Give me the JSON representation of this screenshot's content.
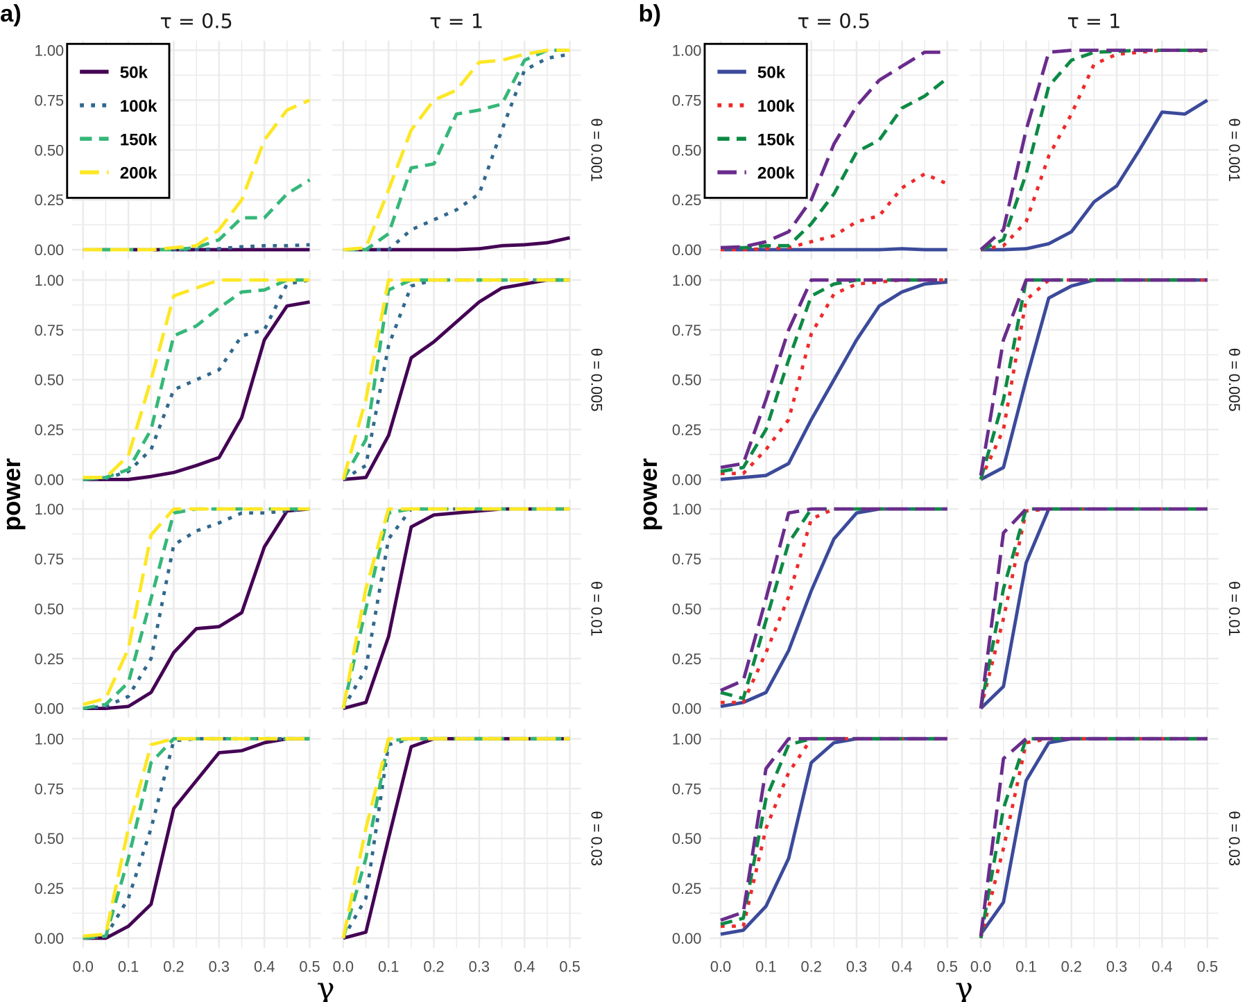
{
  "ylabel": "power",
  "xlabel": "γ",
  "x_ticks": [
    "0.0",
    "0.1",
    "0.2",
    "0.3",
    "0.4",
    "0.5"
  ],
  "y_ticks": [
    "0.00",
    "0.25",
    "0.50",
    "0.75",
    "1.00"
  ],
  "tau_labels": [
    "τ = 0.5",
    "τ = 1"
  ],
  "theta_labels": [
    "θ = 0.001",
    "θ = 0.005",
    "θ = 0.01",
    "θ = 0.03"
  ],
  "chart_data": [
    {
      "type": "line",
      "tag": "a)",
      "x": [
        0,
        0.05,
        0.1,
        0.15,
        0.2,
        0.25,
        0.3,
        0.35,
        0.4,
        0.45,
        0.5
      ],
      "xlim": [
        0,
        0.5
      ],
      "ylim": [
        0,
        1
      ],
      "grid": true,
      "legend_position": "top-left",
      "series_styles": [
        {
          "name": "50k",
          "color": "#440154",
          "dash": "solid"
        },
        {
          "name": "100k",
          "color": "#31688e",
          "dash": "dotted"
        },
        {
          "name": "150k",
          "color": "#35b779",
          "dash": "dashed"
        },
        {
          "name": "200k",
          "color": "#fde725",
          "dash": "longdash"
        }
      ],
      "panels": [
        {
          "tau": "0.5",
          "theta": "0.001",
          "series": [
            [
              0,
              0,
              0,
              0,
              0,
              0,
              0,
              0,
              0,
              0,
              0
            ],
            [
              0,
              0,
              0,
              0,
              0,
              0,
              0.005,
              0.015,
              0.02,
              0.02,
              0.025
            ],
            [
              0,
              0,
              0,
              0,
              0,
              0.01,
              0.05,
              0.16,
              0.16,
              0.28,
              0.35
            ],
            [
              0,
              0,
              0,
              0,
              0.01,
              0.02,
              0.1,
              0.25,
              0.55,
              0.7,
              0.75
            ]
          ]
        },
        {
          "tau": "1",
          "theta": "0.001",
          "series": [
            [
              0,
              0,
              0,
              0,
              0,
              0,
              0.005,
              0.02,
              0.025,
              0.035,
              0.06
            ],
            [
              0,
              0,
              0,
              0.1,
              0.15,
              0.2,
              0.28,
              0.6,
              0.9,
              0.96,
              0.98
            ],
            [
              0,
              0,
              0.08,
              0.41,
              0.43,
              0.68,
              0.7,
              0.73,
              0.95,
              1,
              1
            ],
            [
              0,
              0.01,
              0.3,
              0.6,
              0.75,
              0.8,
              0.94,
              0.95,
              0.98,
              1,
              1
            ]
          ]
        },
        {
          "tau": "0.5",
          "theta": "0.005",
          "series": [
            [
              0,
              0,
              0,
              0.015,
              0.035,
              0.07,
              0.11,
              0.31,
              0.7,
              0.87,
              0.89
            ],
            [
              0,
              0.005,
              0.04,
              0.15,
              0.45,
              0.5,
              0.55,
              0.72,
              0.75,
              0.98,
              1
            ],
            [
              0,
              0.01,
              0.05,
              0.25,
              0.72,
              0.77,
              0.86,
              0.94,
              0.95,
              1,
              1
            ],
            [
              0.01,
              0.01,
              0.12,
              0.5,
              0.92,
              0.96,
              1,
              1,
              1,
              1,
              1
            ]
          ]
        },
        {
          "tau": "1",
          "theta": "0.005",
          "series": [
            [
              0,
              0.01,
              0.22,
              0.61,
              0.69,
              0.79,
              0.89,
              0.96,
              0.98,
              1,
              1
            ],
            [
              0,
              0.07,
              0.67,
              0.97,
              1,
              1,
              1,
              1,
              1,
              1,
              1
            ],
            [
              0,
              0.2,
              0.95,
              1,
              1,
              1,
              1,
              1,
              1,
              1,
              1
            ],
            [
              0,
              0.4,
              1,
              1,
              1,
              1,
              1,
              1,
              1,
              1,
              1
            ]
          ]
        },
        {
          "tau": "0.5",
          "theta": "0.01",
          "series": [
            [
              0,
              0,
              0.01,
              0.08,
              0.28,
              0.4,
              0.41,
              0.48,
              0.81,
              0.99,
              1
            ],
            [
              0,
              0.01,
              0.06,
              0.25,
              0.82,
              0.89,
              0.93,
              0.98,
              0.98,
              0.99,
              1
            ],
            [
              0,
              0.02,
              0.13,
              0.55,
              0.98,
              1,
              1,
              1,
              1,
              1,
              1
            ],
            [
              0.02,
              0.05,
              0.3,
              0.87,
              1,
              1,
              1,
              1,
              1,
              1,
              1
            ]
          ]
        },
        {
          "tau": "1",
          "theta": "0.01",
          "series": [
            [
              0,
              0.03,
              0.36,
              0.91,
              0.97,
              0.98,
              0.99,
              1,
              1,
              1,
              1
            ],
            [
              0,
              0.2,
              0.85,
              1,
              1,
              1,
              1,
              1,
              1,
              1,
              1
            ],
            [
              0,
              0.5,
              0.98,
              1,
              1,
              1,
              1,
              1,
              1,
              1,
              1
            ],
            [
              0,
              0.6,
              1,
              1,
              1,
              1,
              1,
              1,
              1,
              1,
              1
            ]
          ]
        },
        {
          "tau": "0.5",
          "theta": "0.03",
          "series": [
            [
              0,
              0,
              0.06,
              0.17,
              0.65,
              0.79,
              0.93,
              0.94,
              0.98,
              1,
              1
            ],
            [
              0,
              0.01,
              0.2,
              0.55,
              0.99,
              1,
              1,
              1,
              1,
              1,
              1
            ],
            [
              0,
              0.01,
              0.4,
              0.88,
              1,
              1,
              1,
              1,
              1,
              1,
              1
            ],
            [
              0.01,
              0.02,
              0.55,
              0.97,
              1,
              1,
              1,
              1,
              1,
              1,
              1
            ]
          ]
        },
        {
          "tau": "1",
          "theta": "0.03",
          "series": [
            [
              0,
              0.03,
              0.5,
              0.96,
              1,
              1,
              1,
              1,
              1,
              1,
              1
            ],
            [
              0,
              0.2,
              0.97,
              1,
              1,
              1,
              1,
              1,
              1,
              1,
              1
            ],
            [
              0,
              0.4,
              0.99,
              1,
              1,
              1,
              1,
              1,
              1,
              1,
              1
            ],
            [
              0,
              0.55,
              1,
              1,
              1,
              1,
              1,
              1,
              1,
              1,
              1
            ]
          ]
        }
      ]
    },
    {
      "type": "line",
      "tag": "b)",
      "x": [
        0,
        0.05,
        0.1,
        0.15,
        0.2,
        0.25,
        0.3,
        0.35,
        0.4,
        0.45,
        0.5
      ],
      "xlim": [
        0,
        0.5
      ],
      "ylim": [
        0,
        1
      ],
      "grid": true,
      "legend_position": "top-left",
      "series_styles": [
        {
          "name": "50k",
          "color": "#3b4a9a",
          "dash": "solid"
        },
        {
          "name": "100k",
          "color": "#ee2a2a",
          "dash": "dotted"
        },
        {
          "name": "150k",
          "color": "#0d8a45",
          "dash": "dashed"
        },
        {
          "name": "200k",
          "color": "#6a2c8c",
          "dash": "longdash"
        }
      ],
      "panels": [
        {
          "tau": "0.5",
          "theta": "0.001",
          "series": [
            [
              0,
              0,
              0,
              0,
              0,
              0,
              0,
              0,
              0.005,
              0,
              0
            ],
            [
              0,
              0,
              0.005,
              0.01,
              0.04,
              0.07,
              0.14,
              0.17,
              0.31,
              0.38,
              0.33
            ],
            [
              0.01,
              0.01,
              0.02,
              0.02,
              0.13,
              0.28,
              0.49,
              0.55,
              0.71,
              0.77,
              0.86
            ],
            [
              0.01,
              0.015,
              0.04,
              0.09,
              0.25,
              0.53,
              0.72,
              0.85,
              0.92,
              0.99,
              0.99
            ]
          ]
        },
        {
          "tau": "1",
          "theta": "0.001",
          "series": [
            [
              0,
              0,
              0.005,
              0.03,
              0.09,
              0.24,
              0.32,
              0.5,
              0.69,
              0.68,
              0.75
            ],
            [
              0,
              0.02,
              0.14,
              0.47,
              0.68,
              0.93,
              0.98,
              0.99,
              1,
              1,
              0.995
            ],
            [
              0,
              0.05,
              0.38,
              0.82,
              0.95,
              0.99,
              0.995,
              1,
              1,
              1,
              1
            ],
            [
              0,
              0.1,
              0.6,
              0.99,
              1,
              1,
              1,
              1,
              1,
              1,
              1
            ]
          ]
        },
        {
          "tau": "0.5",
          "theta": "0.005",
          "series": [
            [
              0,
              0.01,
              0.02,
              0.08,
              0.3,
              0.5,
              0.7,
              0.87,
              0.94,
              0.98,
              0.99
            ],
            [
              0.03,
              0.03,
              0.15,
              0.3,
              0.73,
              0.93,
              0.98,
              0.99,
              1,
              1,
              1
            ],
            [
              0.04,
              0.06,
              0.25,
              0.6,
              0.92,
              0.98,
              1,
              1,
              1,
              1,
              1
            ],
            [
              0.06,
              0.08,
              0.4,
              0.75,
              1,
              1,
              1,
              1,
              1,
              1,
              1
            ]
          ]
        },
        {
          "tau": "1",
          "theta": "0.005",
          "series": [
            [
              0,
              0.06,
              0.5,
              0.91,
              0.97,
              1,
              1,
              1,
              1,
              1,
              1
            ],
            [
              0,
              0.25,
              0.9,
              1,
              1,
              1,
              1,
              1,
              1,
              1,
              1
            ],
            [
              0,
              0.4,
              1,
              1,
              1,
              1,
              1,
              1,
              1,
              1,
              1
            ],
            [
              0.02,
              0.7,
              1,
              1,
              1,
              1,
              1,
              1,
              1,
              1,
              1
            ]
          ]
        },
        {
          "tau": "0.5",
          "theta": "0.01",
          "series": [
            [
              0.01,
              0.03,
              0.08,
              0.29,
              0.59,
              0.85,
              0.98,
              1,
              1,
              1,
              1
            ],
            [
              0.03,
              0.03,
              0.28,
              0.56,
              0.95,
              1,
              1,
              1,
              1,
              1,
              1
            ],
            [
              0.08,
              0.05,
              0.44,
              0.83,
              1,
              1,
              1,
              1,
              1,
              1,
              1
            ],
            [
              0.09,
              0.14,
              0.55,
              0.98,
              1,
              1,
              1,
              1,
              1,
              1,
              1
            ]
          ]
        },
        {
          "tau": "1",
          "theta": "0.01",
          "series": [
            [
              0,
              0.11,
              0.73,
              1,
              1,
              1,
              1,
              1,
              1,
              1,
              1
            ],
            [
              0,
              0.45,
              0.99,
              1,
              1,
              1,
              1,
              1,
              1,
              1,
              1
            ],
            [
              0,
              0.6,
              1,
              1,
              1,
              1,
              1,
              1,
              1,
              1,
              1
            ],
            [
              0,
              0.88,
              1,
              1,
              1,
              1,
              1,
              1,
              1,
              1,
              1
            ]
          ]
        },
        {
          "tau": "0.5",
          "theta": "0.03",
          "series": [
            [
              0.02,
              0.04,
              0.16,
              0.4,
              0.88,
              0.98,
              1,
              1,
              1,
              1,
              1
            ],
            [
              0.06,
              0.06,
              0.55,
              0.83,
              1,
              1,
              1,
              1,
              1,
              1,
              1
            ],
            [
              0.07,
              0.1,
              0.7,
              0.97,
              1,
              1,
              1,
              1,
              1,
              1,
              1
            ],
            [
              0.09,
              0.13,
              0.85,
              1,
              1,
              1,
              1,
              1,
              1,
              1,
              1
            ]
          ]
        },
        {
          "tau": "1",
          "theta": "0.03",
          "series": [
            [
              0.02,
              0.18,
              0.79,
              0.98,
              1,
              1,
              1,
              1,
              1,
              1,
              1
            ],
            [
              0,
              0.45,
              0.98,
              1,
              1,
              1,
              1,
              1,
              1,
              1,
              1
            ],
            [
              0,
              0.65,
              1,
              1,
              1,
              1,
              1,
              1,
              1,
              1,
              1
            ],
            [
              0.01,
              0.9,
              1,
              1,
              1,
              1,
              1,
              1,
              1,
              1,
              1
            ]
          ]
        }
      ]
    }
  ]
}
